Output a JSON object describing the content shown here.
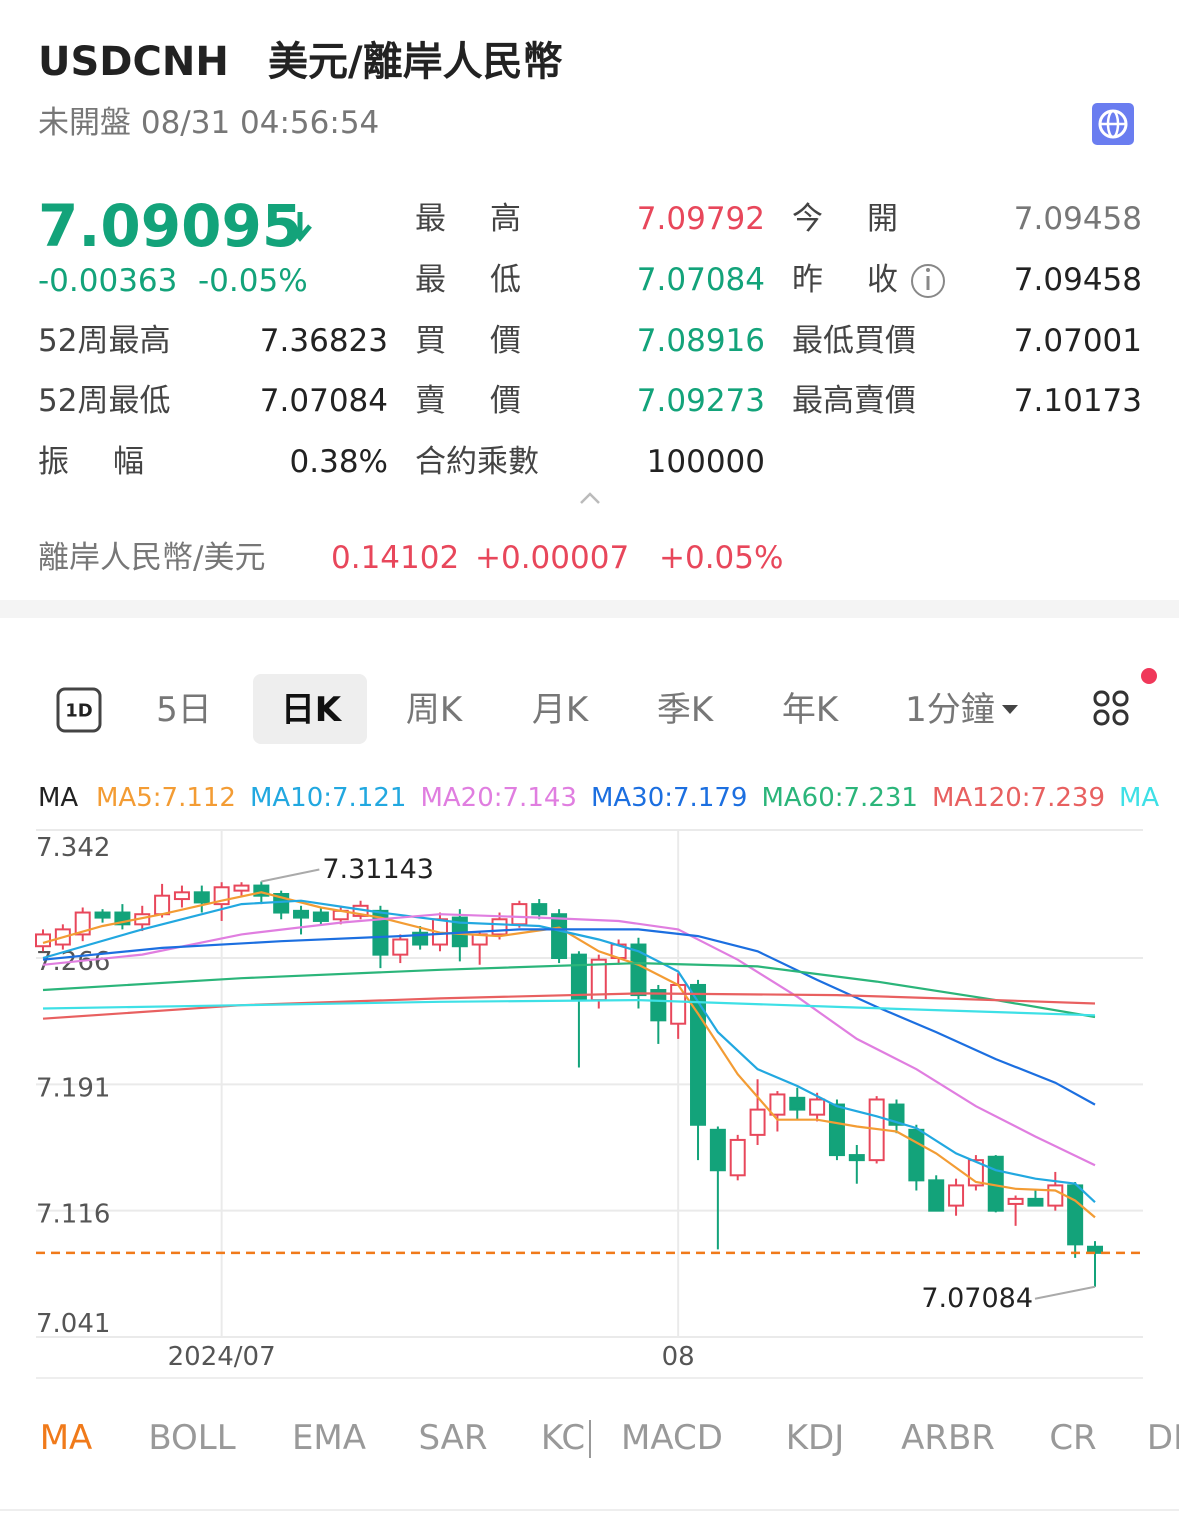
{
  "header": {
    "symbol": "USDCNH",
    "name": "美元/離岸人民幣",
    "status": "未開盤 08/31 04:56:54"
  },
  "quote": {
    "price": "7.09095",
    "change": "-0.00363",
    "change_pct": "-0.05%"
  },
  "stats": {
    "left": [
      {
        "label": "52周最高",
        "value": "7.36823",
        "color": "#222222"
      },
      {
        "label": "52周最低",
        "value": "7.07084",
        "color": "#222222"
      },
      {
        "label": "振 幅",
        "value": "0.38%",
        "color": "#222222"
      }
    ],
    "middle": [
      {
        "label": "最 高",
        "value": "7.09792",
        "color": "#e8475b"
      },
      {
        "label": "最 低",
        "value": "7.07084",
        "color": "#13a37a"
      },
      {
        "label": "買 價",
        "value": "7.08916",
        "color": "#13a37a"
      },
      {
        "label": "賣 價",
        "value": "7.09273",
        "color": "#13a37a"
      },
      {
        "label": "合約乘數",
        "value": "100000",
        "color": "#222222"
      }
    ],
    "right": [
      {
        "label": "今 開",
        "value": "7.09458",
        "color": "#777777"
      },
      {
        "label": "昨 收",
        "value": "7.09458",
        "color": "#222222"
      },
      {
        "label": "最低買價",
        "value": "7.07001",
        "color": "#222222"
      },
      {
        "label": "最高賣價",
        "value": "7.10173",
        "color": "#222222"
      }
    ]
  },
  "related": {
    "name": "離岸人民幣/美元",
    "price": "0.14102",
    "change": "+0.00007",
    "change_pct": "+0.05%"
  },
  "tabs": [
    "1D",
    "5日",
    "日K",
    "周K",
    "月K",
    "季K",
    "年K",
    "1分鐘"
  ],
  "indicators": [
    "MA",
    "BOLL",
    "EMA",
    "SAR",
    "KC",
    "MACD",
    "KDJ",
    "ARBR",
    "CR",
    "DI"
  ],
  "chart_data": {
    "type": "candlestick",
    "indicator": "MA",
    "categories": [
      null,
      null,
      null,
      null,
      null,
      null,
      null,
      null,
      null,
      "2024/07",
      null,
      null,
      null,
      null,
      null,
      null,
      null,
      null,
      null,
      null,
      null,
      null,
      null,
      null,
      null,
      null,
      null,
      null,
      null,
      null,
      null,
      null,
      "08",
      null,
      null,
      null,
      null,
      null,
      null,
      null,
      null,
      null,
      null,
      null,
      null,
      null,
      null,
      null,
      null,
      null,
      null,
      null,
      null,
      null
    ],
    "open": [
      7.273,
      7.274,
      7.28,
      7.293,
      7.293,
      7.286,
      7.292,
      7.301,
      7.305,
      7.298,
      7.306,
      7.309,
      7.304,
      7.294,
      7.293,
      7.289,
      7.291,
      7.294,
      7.268,
      7.281,
      7.274,
      7.29,
      7.274,
      7.28,
      7.286,
      7.298,
      7.292,
      7.268,
      7.241,
      7.266,
      7.274,
      7.247,
      7.227,
      7.25,
      7.164,
      7.137,
      7.161,
      7.173,
      7.183,
      7.173,
      7.179,
      7.149,
      7.146,
      7.179,
      7.164,
      7.134,
      7.119,
      7.131,
      7.148,
      7.12,
      7.123,
      7.119,
      7.131,
      7.09458
    ],
    "high": [
      7.283,
      7.286,
      7.296,
      7.295,
      7.298,
      7.297,
      7.31,
      7.309,
      7.309,
      7.311,
      7.311,
      7.31143,
      7.306,
      7.297,
      7.296,
      7.297,
      7.3,
      7.297,
      7.28,
      7.285,
      7.293,
      7.295,
      7.282,
      7.293,
      7.3,
      7.301,
      7.295,
      7.27,
      7.268,
      7.277,
      7.278,
      7.25,
      7.257,
      7.253,
      7.166,
      7.161,
      7.194,
      7.187,
      7.189,
      7.186,
      7.182,
      7.155,
      7.184,
      7.182,
      7.167,
      7.137,
      7.135,
      7.149,
      7.149,
      7.125,
      7.128,
      7.139,
      7.133,
      7.09792
    ],
    "low": [
      7.27,
      7.271,
      7.276,
      7.287,
      7.283,
      7.282,
      7.29,
      7.296,
      7.293,
      7.288,
      7.303,
      7.298,
      7.289,
      7.28,
      7.286,
      7.286,
      7.289,
      7.26,
      7.263,
      7.271,
      7.27,
      7.264,
      7.262,
      7.277,
      7.284,
      7.289,
      7.263,
      7.201,
      7.236,
      7.262,
      7.236,
      7.215,
      7.218,
      7.146,
      7.093,
      7.134,
      7.155,
      7.163,
      7.17,
      7.169,
      7.146,
      7.132,
      7.144,
      7.162,
      7.128,
      7.116,
      7.113,
      7.128,
      7.115,
      7.107,
      7.119,
      7.116,
      7.088,
      7.07084
    ],
    "close": [
      7.28,
      7.283,
      7.293,
      7.29,
      7.286,
      7.292,
      7.303,
      7.305,
      7.299,
      7.308,
      7.309,
      7.303,
      7.293,
      7.29,
      7.288,
      7.294,
      7.297,
      7.268,
      7.277,
      7.274,
      7.289,
      7.273,
      7.28,
      7.289,
      7.298,
      7.292,
      7.266,
      7.241,
      7.265,
      7.274,
      7.244,
      7.229,
      7.25,
      7.167,
      7.14,
      7.158,
      7.176,
      7.185,
      7.176,
      7.182,
      7.149,
      7.146,
      7.182,
      7.167,
      7.134,
      7.116,
      7.131,
      7.146,
      7.116,
      7.123,
      7.119,
      7.131,
      7.096,
      7.09095
    ],
    "up_color": "#e8475b",
    "down_color": "#13a37a",
    "price_line_color": "#f07a1a",
    "series": [
      {
        "name": "MA5:7.112",
        "color": "#f39c34",
        "x": [
          0,
          3,
          6,
          9,
          11,
          14,
          17,
          20,
          23,
          26,
          28,
          30,
          32,
          33,
          35,
          37,
          39,
          41,
          43,
          45,
          47,
          49,
          51,
          52,
          53
        ],
        "values": [
          7.275,
          7.285,
          7.292,
          7.3,
          7.305,
          7.296,
          7.29,
          7.281,
          7.279,
          7.284,
          7.27,
          7.262,
          7.25,
          7.233,
          7.197,
          7.17,
          7.17,
          7.166,
          7.163,
          7.15,
          7.133,
          7.129,
          7.128,
          7.122,
          7.112
        ]
      },
      {
        "name": "MA10:7.121",
        "color": "#22a8e0",
        "x": [
          0,
          5,
          10,
          13,
          17,
          21,
          25,
          28,
          30,
          32,
          34,
          36,
          38,
          40,
          42,
          44,
          46,
          48,
          50,
          52,
          53
        ],
        "values": [
          7.266,
          7.283,
          7.298,
          7.3,
          7.293,
          7.287,
          7.285,
          7.277,
          7.27,
          7.258,
          7.222,
          7.2,
          7.19,
          7.178,
          7.172,
          7.165,
          7.15,
          7.14,
          7.135,
          7.132,
          7.121
        ]
      },
      {
        "name": "MA20:7.143",
        "color": "#e07ee0",
        "x": [
          0,
          5,
          10,
          15,
          20,
          25,
          29,
          32,
          35,
          38,
          41,
          44,
          47,
          50,
          53
        ],
        "values": [
          7.262,
          7.268,
          7.28,
          7.287,
          7.292,
          7.29,
          7.288,
          7.283,
          7.265,
          7.243,
          7.218,
          7.2,
          7.178,
          7.16,
          7.143
        ]
      },
      {
        "name": "MA30:7.179",
        "color": "#1c6fe0",
        "x": [
          0,
          6,
          12,
          18,
          24,
          30,
          33,
          36,
          39,
          42,
          45,
          48,
          51,
          53
        ],
        "values": [
          7.265,
          7.272,
          7.276,
          7.279,
          7.283,
          7.283,
          7.279,
          7.27,
          7.253,
          7.237,
          7.222,
          7.206,
          7.192,
          7.179
        ]
      },
      {
        "name": "MA60:7.231",
        "color": "#2bb57a",
        "x": [
          0,
          10,
          20,
          30,
          36,
          42,
          48,
          53
        ],
        "values": [
          7.247,
          7.254,
          7.259,
          7.263,
          7.261,
          7.252,
          7.241,
          7.231
        ]
      },
      {
        "name": "MA120:7.239",
        "color": "#e86060",
        "x": [
          0,
          10,
          20,
          30,
          40,
          48,
          53
        ],
        "values": [
          7.23,
          7.238,
          7.242,
          7.245,
          7.244,
          7.241,
          7.239
        ]
      },
      {
        "name": "MA",
        "color": "#3ee0e6",
        "x": [
          0,
          10,
          20,
          30,
          40,
          53
        ],
        "values": [
          7.236,
          7.238,
          7.24,
          7.241,
          7.237,
          7.232
        ]
      }
    ],
    "ylim": [
      7.041,
      7.342
    ],
    "yticks": [
      7.041,
      7.116,
      7.191,
      7.266,
      7.342
    ],
    "grid": true
  }
}
